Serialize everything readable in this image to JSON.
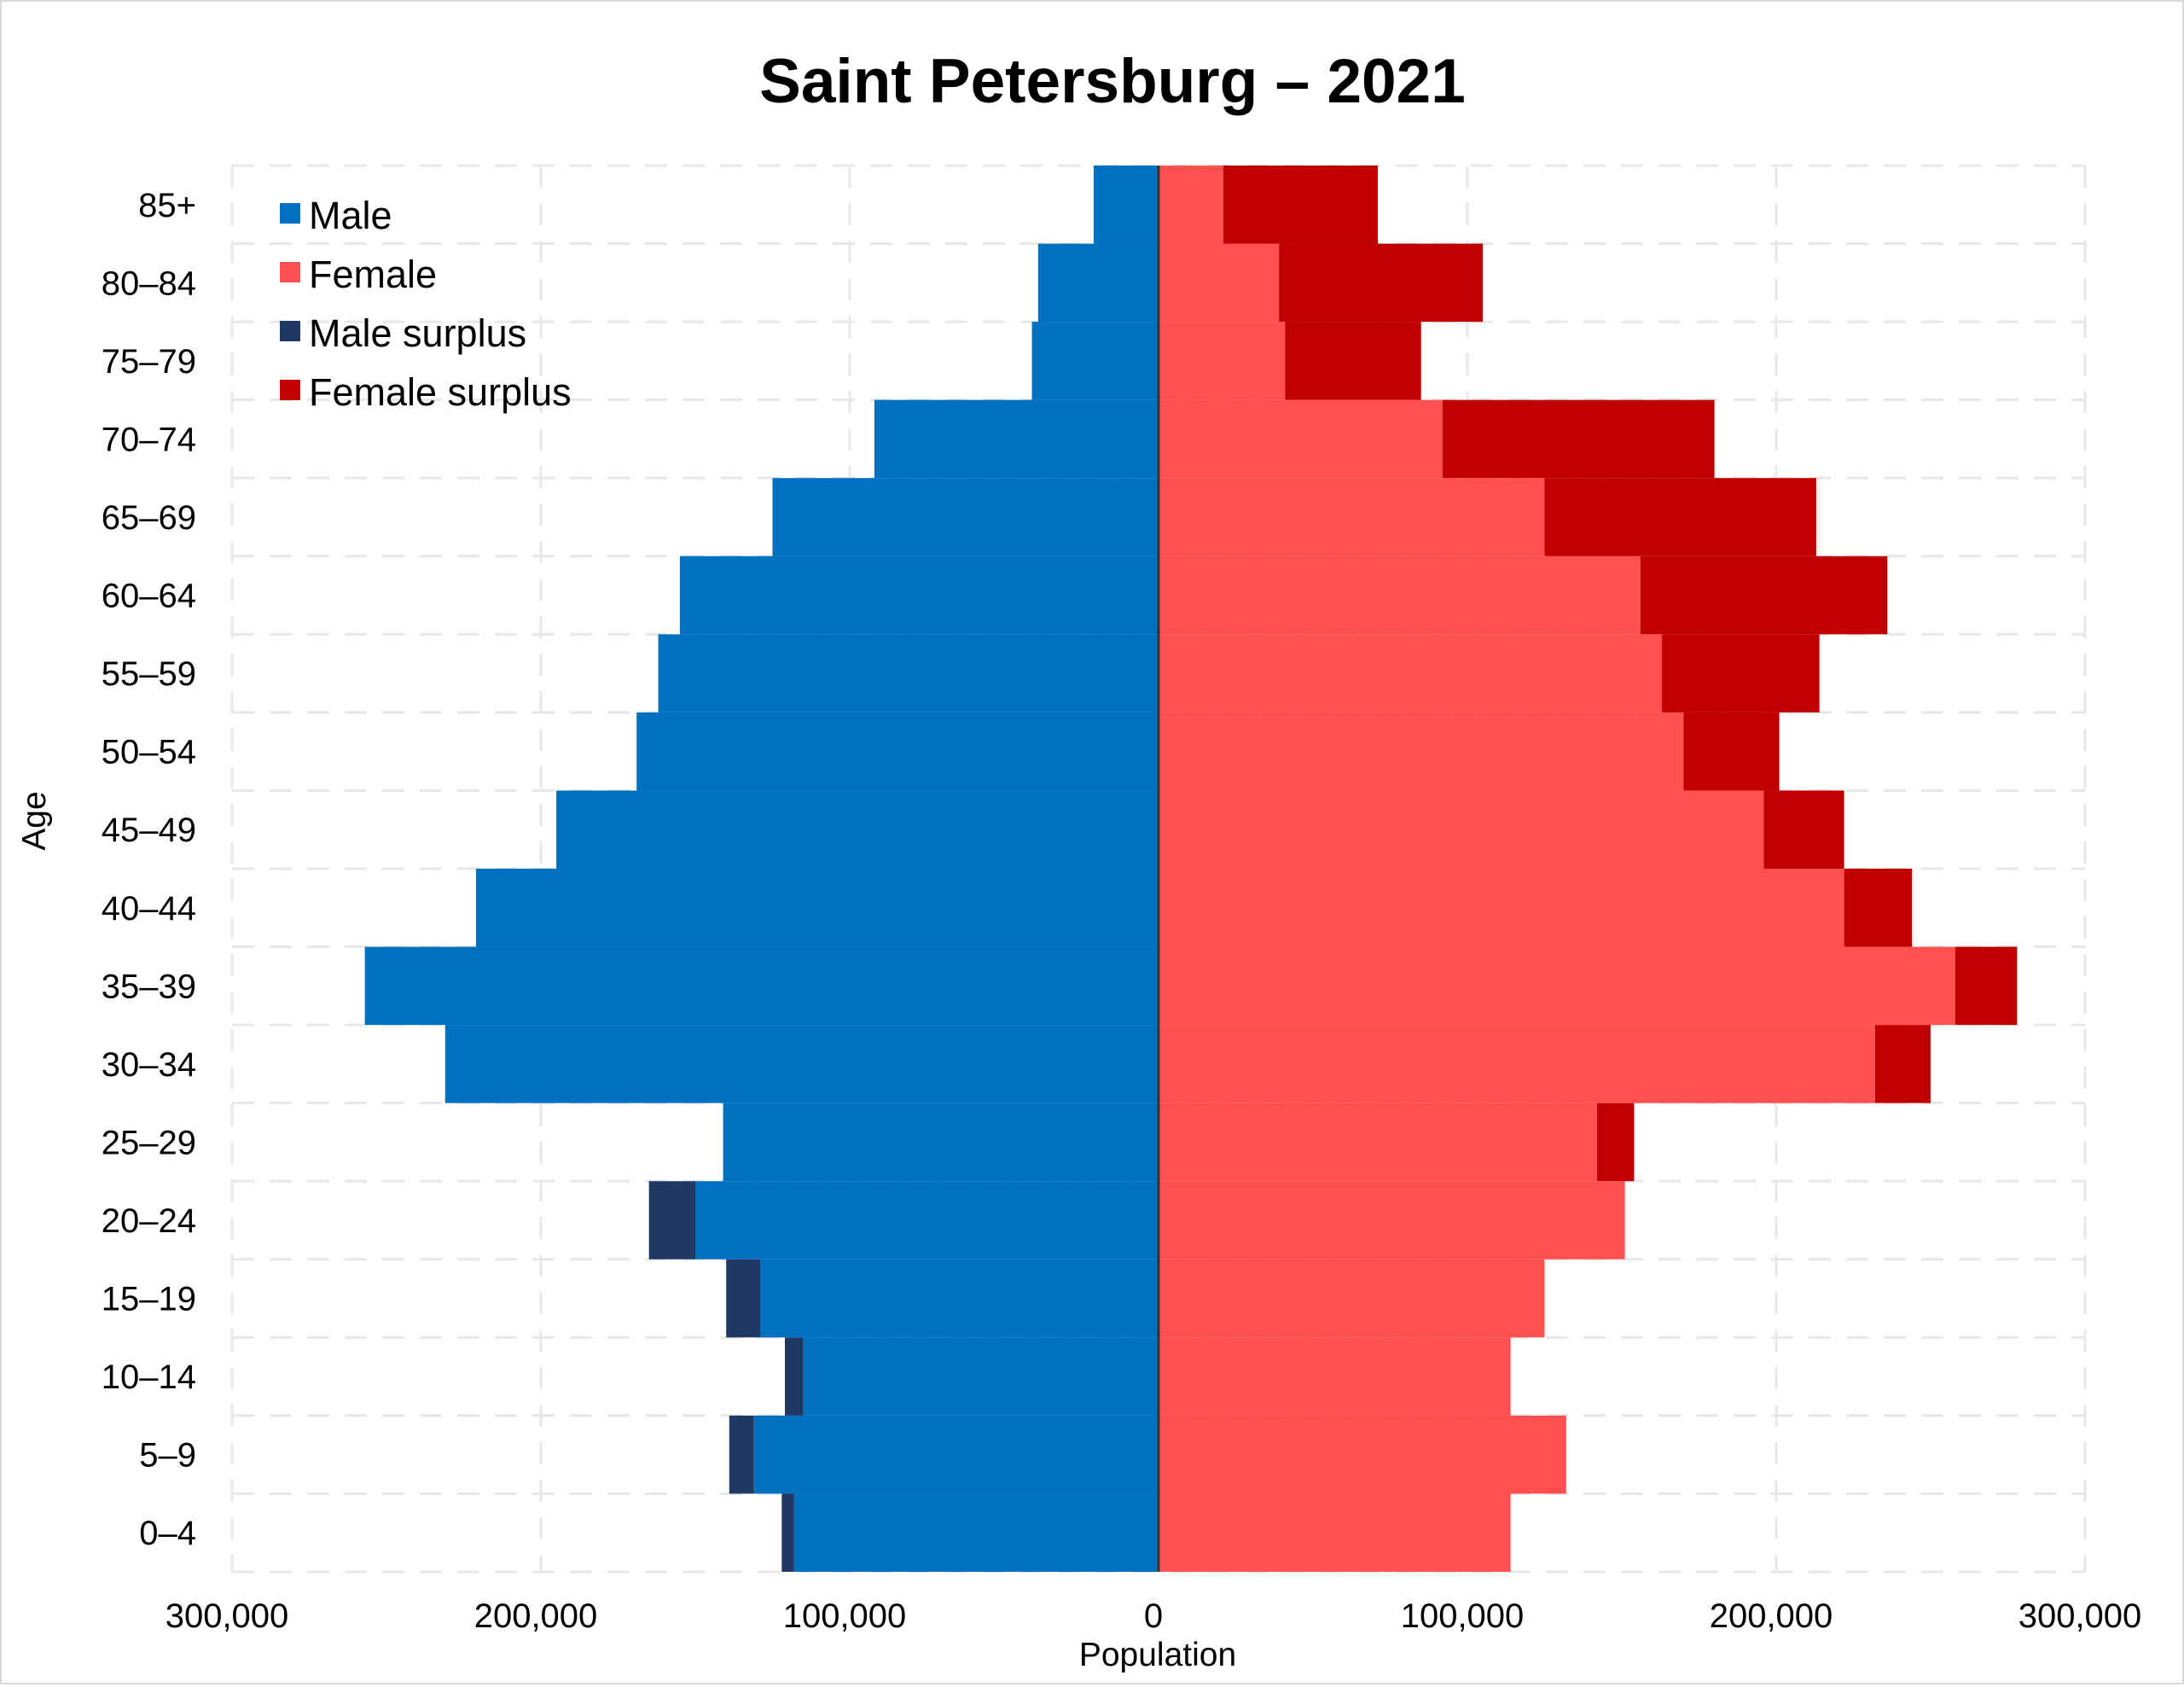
{
  "chart_data": {
    "type": "bar",
    "orientation": "horizontal",
    "layout": "population-pyramid",
    "title": "Saint Petersburg – 2021",
    "xlabel": "Population",
    "ylabel": "Age",
    "xlim": [
      -300000,
      300000
    ],
    "x_ticks": [
      -300000,
      -200000,
      -100000,
      0,
      100000,
      200000,
      300000
    ],
    "x_tick_labels": [
      "300,000",
      "200,000",
      "100,000",
      "0",
      "100,000",
      "200,000",
      "300,000"
    ],
    "grid": true,
    "legend_position": "top-left",
    "categories": [
      "0–4",
      "5–9",
      "10–14",
      "15–19",
      "20–24",
      "25–29",
      "30–34",
      "35–39",
      "40–44",
      "45–49",
      "50–54",
      "55–59",
      "60–64",
      "65–69",
      "70–74",
      "75–79",
      "80–84",
      "85+"
    ],
    "series": [
      {
        "name": "Male",
        "color": "#0070c0",
        "values": [
          118000,
          131000,
          115000,
          129000,
          150000,
          141000,
          231000,
          257000,
          221000,
          195000,
          169000,
          162000,
          155000,
          125000,
          92000,
          41000,
          39000,
          21000
        ]
      },
      {
        "name": "Female",
        "color": "#ff5050",
        "values": [
          114000,
          132000,
          114000,
          125000,
          151000,
          142000,
          232000,
          258000,
          222000,
          196000,
          170000,
          163000,
          156000,
          125000,
          92000,
          41000,
          39000,
          21000
        ]
      },
      {
        "name": "Male surplus",
        "color": "#203864",
        "values": [
          4000,
          8000,
          6000,
          11000,
          15000,
          0,
          0,
          0,
          0,
          0,
          0,
          0,
          0,
          0,
          0,
          0,
          0,
          0
        ]
      },
      {
        "name": "Female surplus",
        "color": "#c00000",
        "values": [
          0,
          0,
          0,
          0,
          0,
          12000,
          18000,
          20000,
          22000,
          26000,
          31000,
          51000,
          80000,
          88000,
          88000,
          44000,
          66000,
          50000
        ]
      }
    ]
  }
}
